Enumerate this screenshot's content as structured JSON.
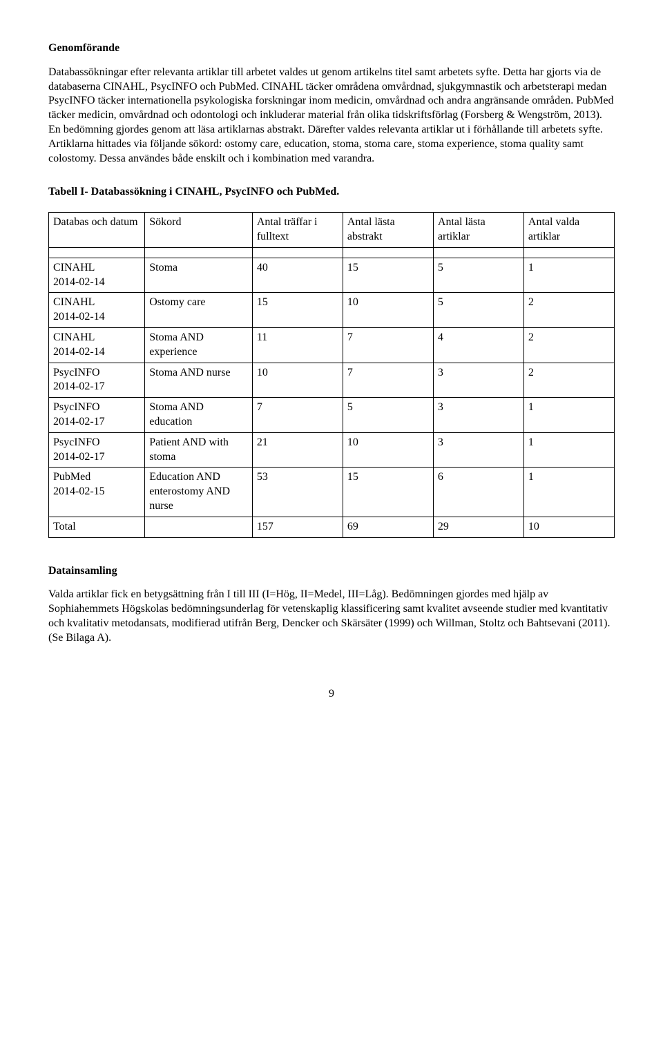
{
  "heading1": "Genomförande",
  "para1": "Databassökningar efter relevanta artiklar till arbetet valdes ut genom artikelns titel samt arbetets syfte. Detta har gjorts via de databaserna CINAHL, PsycINFO och PubMed. CINAHL täcker områdena omvårdnad, sjukgymnastik och arbetsterapi medan PsycINFO täcker internationella psykologiska forskningar inom medicin, omvårdnad och andra angränsande områden. PubMed täcker medicin, omvårdnad och odontologi och inkluderar material från olika tidskriftsförlag (Forsberg & Wengström, 2013). En bedömning gjordes genom att läsa artiklarnas abstrakt. Därefter valdes relevanta artiklar ut i förhållande till arbetets syfte. Artiklarna hittades via följande sökord: ostomy care, education, stoma, stoma care, stoma experience, stoma quality samt colostomy. Dessa användes både enskilt och i kombination med varandra.",
  "tableTitle": "Tabell I- Databassökning i CINAHL, PsycINFO och PubMed.",
  "columns": [
    "Databas och datum",
    "Sökord",
    "Antal träffar i fulltext",
    "Antal lästa abstrakt",
    "Antal lästa artiklar",
    "Antal valda artiklar"
  ],
  "rows": [
    [
      "CINAHL\n2014-02-14",
      "Stoma",
      "40",
      "15",
      "5",
      "1"
    ],
    [
      "CINAHL\n2014-02-14",
      "Ostomy care",
      "15",
      "10",
      "5",
      "2"
    ],
    [
      "CINAHL\n2014-02-14",
      "Stoma AND experience",
      "11",
      "7",
      "4",
      "2"
    ],
    [
      "PsycINFO\n2014-02-17",
      "Stoma AND nurse",
      "10",
      "7",
      "3",
      "2"
    ],
    [
      "PsycINFO\n2014-02-17",
      "Stoma AND education",
      "7",
      "5",
      "3",
      "1"
    ],
    [
      "PsycINFO\n2014-02-17",
      "Patient AND with stoma",
      "21",
      "10",
      "3",
      "1"
    ],
    [
      "PubMed\n2014-02-15",
      "Education AND enterostomy AND nurse",
      "53",
      "15",
      "6",
      "1"
    ],
    [
      "Total",
      "",
      "157",
      "69",
      "29",
      "10"
    ]
  ],
  "heading2": "Datainsamling",
  "para2": "Valda artiklar fick en betygsättning från I till III (I=Hög, II=Medel, III=Låg). Bedömningen gjordes med hjälp av Sophiahemmets Högskolas bedömningsunderlag för vetenskaplig klassificering samt kvalitet avseende studier med kvantitativ och kvalitativ metodansats, modifierad utifrån Berg, Dencker och Skärsäter (1999) och Willman, Stoltz och Bahtsevani (2011). (Se Bilaga A).",
  "pageNumber": "9",
  "colWidths": [
    "17%",
    "19%",
    "16%",
    "16%",
    "16%",
    "16%"
  ]
}
